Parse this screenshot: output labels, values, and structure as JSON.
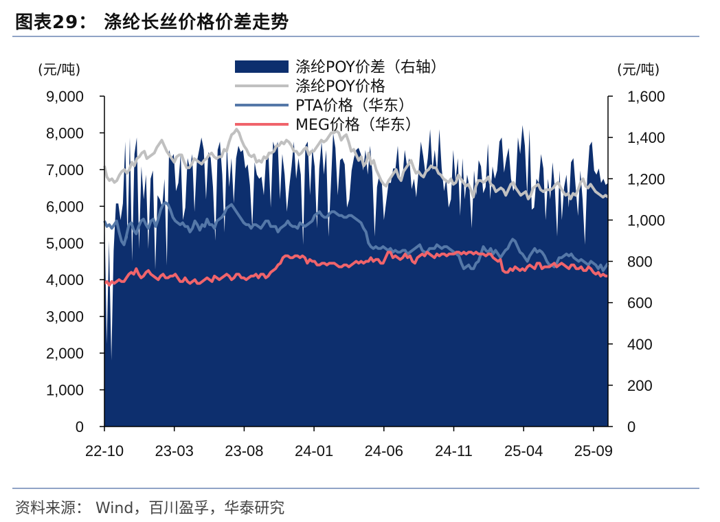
{
  "title": "图表29：  涤纶长丝价格价差走势",
  "source": "资料来源：  Wind，百川盈孚，华泰研究",
  "chart_data": {
    "type": "area+line",
    "left_unit": "(元/吨)",
    "right_unit": "(元/吨)",
    "left_ticks": [
      "0",
      "1,000",
      "2,000",
      "3,000",
      "4,000",
      "5,000",
      "6,000",
      "7,000",
      "8,000",
      "9,000"
    ],
    "right_ticks": [
      "0",
      "200",
      "400",
      "600",
      "800",
      "1,000",
      "1,200",
      "1,400",
      "1,600"
    ],
    "x_ticks": [
      "22-10",
      "23-03",
      "23-08",
      "24-01",
      "24-06",
      "24-11",
      "25-04",
      "25-09"
    ],
    "left_ylim": [
      0,
      9000
    ],
    "right_ylim": [
      0,
      1600
    ],
    "legend": [
      {
        "name": "涤纶POY价差（右轴）",
        "color": "#0d2f6e",
        "kind": "area"
      },
      {
        "name": "涤纶POY价格",
        "color": "#c0c0c0",
        "kind": "line"
      },
      {
        "name": "PTA价格（华东）",
        "color": "#5578a8",
        "kind": "line"
      },
      {
        "name": "MEG价格（华东）",
        "color": "#f0646b",
        "kind": "line"
      }
    ],
    "series": [
      {
        "name": "涤纶POY价差（右轴）",
        "axis": "right",
        "values": [
          1050,
          400,
          900,
          320,
          850,
          1080,
          1080,
          1000,
          1080,
          1380,
          900,
          1400,
          800,
          1320,
          1400,
          860,
          1260,
          1100,
          1220,
          860,
          1200,
          1240,
          760,
          1120,
          1100,
          1060,
          1200,
          780,
          1340,
          1300,
          1320,
          1140,
          1180,
          1320,
          1000,
          1060,
          1300,
          1250,
          1320,
          1040,
          1280,
          1340,
          1400,
          1340,
          1100,
          1330,
          1300,
          1160,
          900,
          1340,
          1380,
          1220,
          940,
          1360,
          1160,
          1300,
          1080,
          1300,
          1360,
          1330,
          1340,
          1250,
          1270,
          1170,
          960,
          1280,
          1220,
          1200,
          1210,
          1120,
          1310,
          1320,
          1060,
          1380,
          1340,
          1380,
          1100,
          1320,
          1220,
          1040,
          1160,
          1260,
          1380,
          1200,
          1300,
          1220,
          880,
          1360,
          1380,
          1120,
          1350,
          1260,
          960,
          1250,
          1380,
          1220,
          1340,
          920,
          1160,
          1420,
          1350,
          1120,
          1290,
          1300,
          1270,
          1060,
          1100,
          1240,
          1300,
          1340,
          1350,
          1320,
          1240,
          1340,
          1220,
          1360,
          1230,
          920,
          1160,
          1220,
          1200,
          1000,
          1090,
          1180,
          1180,
          1250,
          1250,
          1360,
          1190,
          1200,
          1340,
          1260,
          1300,
          1150,
          1200,
          1110,
          1240,
          1380,
          1310,
          1220,
          1300,
          1440,
          1240,
          1340,
          1230,
          1440,
          1250,
          1140,
          1200,
          1060,
          1100,
          1340,
          1190,
          1300,
          1020,
          1300,
          1100,
          1220,
          1160,
          960,
          1240,
          1120,
          1290,
          1260,
          1130,
          1160,
          1370,
          1100,
          1260,
          1200,
          1240,
          1380,
          1400,
          1230,
          1300,
          1350,
          1200,
          1140,
          1170,
          1400,
          1320,
          1460,
          1360,
          1120,
          1440,
          1050,
          1060,
          1200,
          1180,
          1320,
          1250,
          1000,
          1200,
          1100,
          1280,
          1150,
          920,
          1240,
          1000,
          1160,
          1220,
          1060,
          1280,
          1300,
          1160,
          1020,
          1240,
          1100,
          880,
          1200,
          1360,
          1380,
          1240,
          1220,
          1250,
          1180,
          1200,
          1170,
          1180
        ]
      },
      {
        "name": "涤纶POY价格",
        "axis": "left",
        "values": [
          7100,
          6800,
          6700,
          6750,
          6650,
          6700,
          6850,
          6950,
          7000,
          6900,
          7000,
          7200,
          7100,
          7300,
          7350,
          7450,
          7500,
          7300,
          7350,
          7400,
          7450,
          7600,
          7700,
          7800,
          7650,
          7500,
          7400,
          7300,
          7200,
          7350,
          7400,
          7400,
          7200,
          7050,
          7050,
          7150,
          7300,
          7250,
          7200,
          7150,
          7250,
          7300,
          7400,
          7450,
          7350,
          7300,
          7350,
          7350,
          7550,
          7500,
          7750,
          7950,
          8000,
          8100,
          8000,
          7800,
          7650,
          7550,
          7400,
          7350,
          7400,
          7200,
          7250,
          7200,
          7350,
          7300,
          7450,
          7450,
          7500,
          7650,
          7650,
          7750,
          7700,
          7800,
          7750,
          7650,
          7500,
          7500,
          7400,
          7450,
          7550,
          7600,
          7400,
          7500,
          7500,
          7600,
          7700,
          7800,
          7750,
          7800,
          7900,
          8000,
          8000,
          8050,
          8000,
          7800,
          7900,
          7950,
          7750,
          7500,
          7550,
          7400,
          7250,
          7350,
          7100,
          7200,
          7450,
          7150,
          7250,
          7000,
          6850,
          6700,
          6600,
          6550,
          6700,
          6800,
          6900,
          7000,
          6800,
          6700,
          6950,
          7050,
          7150,
          7250,
          7050,
          6900,
          6950,
          6850,
          6800,
          6950,
          7000,
          7100,
          7050,
          7050,
          6900,
          6850,
          6750,
          6700,
          6650,
          6750,
          6600,
          6650,
          6850,
          6750,
          6650,
          6550,
          6600,
          6450,
          6250,
          6550,
          6700,
          6700,
          6650,
          6700,
          6800,
          6600,
          6550,
          6400,
          6450,
          6500,
          6450,
          6300,
          6450,
          6600,
          6650,
          6500,
          6400,
          6300,
          6350,
          6400,
          6200,
          6300,
          6500,
          6550,
          6600,
          6450,
          6400,
          6450,
          6450,
          6450,
          6500,
          6600,
          6650,
          6500,
          6400,
          6300,
          6350,
          6200,
          6350,
          6300,
          6450,
          6650,
          6750,
          6550,
          6500,
          6600,
          6500,
          6400,
          6350,
          6300,
          6250,
          6300,
          6250
        ]
      },
      {
        "name": "PTA价格（华东）",
        "axis": "left",
        "values": [
          5600,
          5450,
          5500,
          5400,
          5500,
          5600,
          5300,
          5050,
          4950,
          5200,
          5500,
          5550,
          5350,
          5250,
          5450,
          5600,
          5650,
          5500,
          5400,
          5600,
          5650,
          5450,
          5650,
          5900,
          6050,
          6100,
          6050,
          5900,
          5700,
          5600,
          5550,
          5500,
          5550,
          5450,
          5450,
          5300,
          5400,
          5600,
          5500,
          5350,
          5500,
          5450,
          5650,
          5500,
          5500,
          5400,
          5600,
          5650,
          5700,
          5800,
          5950,
          6000,
          6050,
          5950,
          5850,
          5750,
          5650,
          5550,
          5500,
          5500,
          5400,
          5500,
          5500,
          5450,
          5400,
          5500,
          5600,
          5600,
          5450,
          5450,
          5450,
          5300,
          5400,
          5450,
          5500,
          5600,
          5500,
          5450,
          5450,
          5400,
          5550,
          5500,
          5450,
          5500,
          5550,
          5600,
          5750,
          5800,
          5850,
          5750,
          5700,
          5700,
          5800,
          5850,
          5850,
          5800,
          5750,
          5750,
          5700,
          5700,
          5750,
          5750,
          5700,
          5650,
          5600,
          5550,
          5400,
          5300,
          5000,
          4900,
          4850,
          4900,
          4850,
          4850,
          4900,
          4850,
          4800,
          4850,
          4750,
          4800,
          4750,
          4750,
          4800,
          4800,
          4700,
          4750,
          4800,
          4850,
          4900,
          4950,
          4800,
          4750,
          4750,
          4850,
          4850,
          4850,
          4950,
          4900,
          4850,
          4900,
          4900,
          4850,
          4800,
          4750,
          4700,
          4650,
          4450,
          4300,
          4350,
          4400,
          4300,
          4300,
          4450,
          4500,
          4700,
          4900,
          4800,
          4750,
          4850,
          4700,
          4800,
          4700,
          4600,
          4700,
          4800,
          4850,
          5000,
          5100,
          5050,
          4900,
          4750,
          4700,
          4600,
          4500,
          4650,
          4750,
          4850,
          4750,
          4800,
          4750,
          4650,
          4500,
          4400,
          4400,
          4350,
          4450,
          4600,
          4600,
          4650,
          4700,
          4650,
          4700,
          4600,
          4550,
          4500,
          4550,
          4500,
          4450,
          4400,
          4500,
          4450,
          4400,
          4300,
          4400,
          4250,
          4350,
          4450
        ]
      },
      {
        "name": "MEG价格（华东）",
        "axis": "left",
        "values": [
          3900,
          3950,
          3850,
          3950,
          3900,
          3950,
          4000,
          3950,
          3950,
          4050,
          4150,
          4200,
          4150,
          4300,
          4150,
          4050,
          4100,
          4200,
          4250,
          4150,
          4100,
          4050,
          4000,
          4100,
          4150,
          4050,
          4050,
          4100,
          4100,
          4150,
          4050,
          3950,
          3950,
          4050,
          3950,
          3900,
          3950,
          4000,
          3900,
          3900,
          3950,
          4000,
          4050,
          4000,
          3950,
          4100,
          4050,
          4000,
          4050,
          4100,
          4150,
          4100,
          4000,
          4050,
          4150,
          4150,
          4050,
          4050,
          4000,
          4050,
          4100,
          4100,
          4150,
          4050,
          4150,
          4150,
          4050,
          4100,
          4200,
          4250,
          4300,
          4400,
          4450,
          4600,
          4650,
          4650,
          4600,
          4600,
          4650,
          4650,
          4600,
          4650,
          4600,
          4450,
          4550,
          4500,
          4500,
          4400,
          4400,
          4450,
          4450,
          4400,
          4450,
          4450,
          4450,
          4400,
          4350,
          4350,
          4400,
          4400,
          4350,
          4400,
          4450,
          4500,
          4450,
          4500,
          4450,
          4500,
          4500,
          4600,
          4500,
          4550,
          4550,
          4450,
          4450,
          4600,
          4750,
          4750,
          4600,
          4650,
          4600,
          4550,
          4600,
          4700,
          4600,
          4650,
          4500,
          4450,
          4600,
          4650,
          4700,
          4650,
          4750,
          4700,
          4650,
          4600,
          4700,
          4650,
          4700,
          4700,
          4650,
          4700,
          4700,
          4700,
          4750,
          4750,
          4700,
          4750,
          4700,
          4750,
          4750,
          4700,
          4750,
          4700,
          4700,
          4700,
          4650,
          4700,
          4700,
          4600,
          4550,
          4500,
          4550,
          4250,
          4200,
          4200,
          4300,
          4250,
          4350,
          4300,
          4250,
          4300,
          4250,
          4350,
          4400,
          4350,
          4300,
          4450,
          4450,
          4300,
          4350,
          4350,
          4350,
          4400,
          4450,
          4350,
          4400,
          4450,
          4400,
          4350,
          4300,
          4400,
          4400,
          4300,
          4300,
          4350,
          4250,
          4250,
          4350,
          4300,
          4200,
          4150,
          4200,
          4100,
          4150,
          4100,
          4100
        ]
      }
    ]
  }
}
